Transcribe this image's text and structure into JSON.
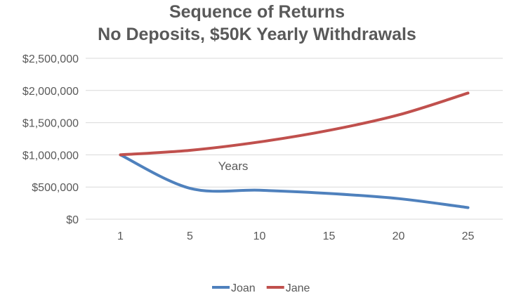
{
  "chart_data": {
    "type": "line",
    "title_line1": "Sequence of Returns",
    "title_line2": "No Deposits, $50K Yearly Withdrawals",
    "xlabel": "Years",
    "ylabel": "",
    "categories": [
      "1",
      "5",
      "10",
      "15",
      "20",
      "25"
    ],
    "ylim": [
      0,
      2500000
    ],
    "y_ticks": [
      0,
      500000,
      1000000,
      1500000,
      2000000,
      2500000
    ],
    "y_tick_labels": [
      "$0",
      "$500,000",
      "$1,000,000",
      "$1,500,000",
      "$2,000,000",
      "$2,500,000"
    ],
    "grid": "horizontal",
    "legend_position": "bottom",
    "series": [
      {
        "name": "Joan",
        "color": "#4F81BD",
        "values": [
          1000000,
          480000,
          450000,
          400000,
          320000,
          180000
        ]
      },
      {
        "name": "Jane",
        "color": "#C0504D",
        "values": [
          1000000,
          1070000,
          1200000,
          1380000,
          1620000,
          1960000
        ]
      }
    ]
  }
}
